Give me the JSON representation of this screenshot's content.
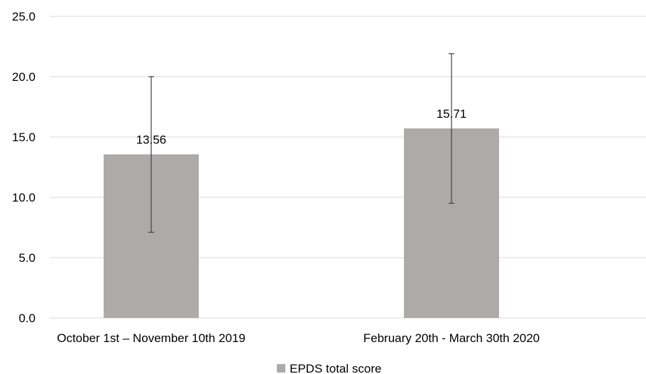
{
  "chart_data": {
    "type": "bar",
    "categories": [
      "October 1st – November 10th 2019",
      "February 20th - March 30th 2020"
    ],
    "series": [
      {
        "name": "EPDS total score",
        "values": [
          13.56,
          15.71
        ],
        "error_low": [
          7.1,
          9.5
        ],
        "error_high": [
          20.0,
          21.9
        ],
        "data_labels": [
          "13.56",
          "15.71"
        ]
      }
    ],
    "y_ticks": [
      "0.0",
      "5.0",
      "10.0",
      "15.0",
      "20.0",
      "25.0"
    ],
    "ylim": [
      0,
      25
    ],
    "grid": true,
    "legend_position": "bottom",
    "colors": {
      "bar": "#aeaaaa",
      "gridline": "#d9d9d9",
      "error_bar": "#404040"
    }
  }
}
